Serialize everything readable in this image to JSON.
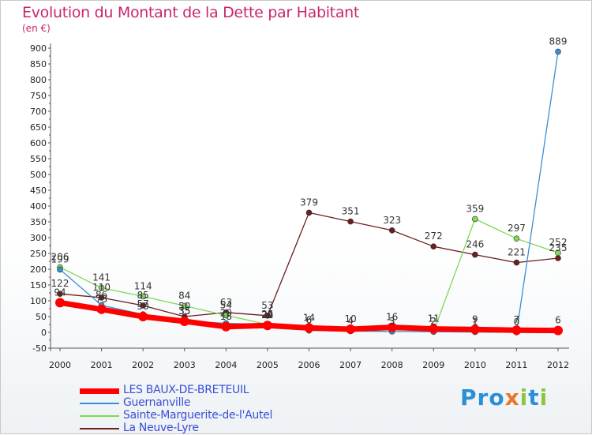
{
  "title": "Evolution du Montant de la Dette par Habitant",
  "unit": "(en €)",
  "logo": {
    "text": "Proxiti",
    "letters": [
      "P",
      "r",
      "o",
      "x",
      "i",
      "t",
      "i"
    ],
    "colors": [
      "#2b8fd6",
      "#2b8fd6",
      "#2b8fd6",
      "#e8792b",
      "#8cc63f",
      "#2b8fd6",
      "#8cc63f"
    ]
  },
  "chart_data": {
    "type": "line",
    "x": [
      2000,
      2001,
      2002,
      2003,
      2004,
      2005,
      2006,
      2007,
      2008,
      2009,
      2010,
      2011,
      2012
    ],
    "ylim": [
      -50,
      900
    ],
    "yticks": [
      -50,
      0,
      50,
      100,
      150,
      200,
      250,
      300,
      350,
      400,
      450,
      500,
      550,
      600,
      650,
      700,
      750,
      800,
      850,
      900
    ],
    "grid": false,
    "legend_position": "bottom-left",
    "series": [
      {
        "name": "LES BAUX-DE-BRETEUIL",
        "color": "#ff0000",
        "values": [
          94,
          73,
          50,
          35,
          18,
          22,
          14,
          10,
          16,
          11,
          9,
          7,
          6
        ],
        "labels": [
          "94",
          "73",
          "50",
          "35",
          "18",
          "22",
          "14",
          "10",
          "16",
          "11",
          "9",
          "7",
          "6"
        ]
      },
      {
        "name": "Guernanville",
        "color": "#3a8fd6",
        "values": [
          199,
          86,
          57,
          35,
          29,
          24,
          6,
          4,
          3,
          2,
          1,
          0,
          889
        ],
        "labels": [
          "199",
          "86",
          "57",
          "35",
          "29",
          "24",
          "6",
          "4",
          "3",
          "2",
          "1",
          "0",
          "889"
        ]
      },
      {
        "name": "Sainte-Marguerite-de-l'Autel",
        "color": "#7ed957",
        "values": [
          206,
          141,
          114,
          84,
          54,
          25,
          6,
          4,
          3,
          2,
          359,
          297,
          252
        ],
        "labels": [
          "206",
          "141",
          "114",
          "84",
          "54",
          "25",
          "6",
          "4",
          "3",
          "2",
          "359",
          "297",
          "252"
        ]
      },
      {
        "name": "La Neuve-Lyre",
        "color": "#6b1f1f",
        "values": [
          122,
          110,
          85,
          50,
          63,
          53,
          379,
          351,
          323,
          272,
          246,
          221,
          235
        ],
        "labels": [
          "122",
          "110",
          "85",
          "50",
          "63",
          "53",
          "379",
          "351",
          "323",
          "272",
          "246",
          "221",
          "235"
        ]
      }
    ]
  }
}
